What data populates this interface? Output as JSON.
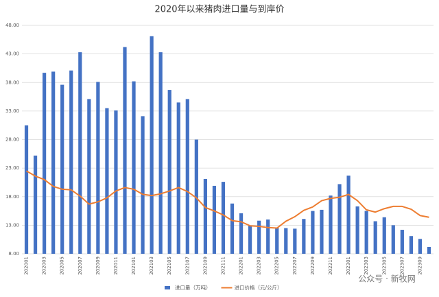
{
  "chart_data": {
    "type": "bar_line",
    "title": "2020年以来猪肉进口量与到岸价",
    "categories": [
      "202001",
      null,
      "202003",
      null,
      "202005",
      null,
      "202007",
      null,
      "202009",
      null,
      "202011",
      null,
      "202101",
      null,
      "202103",
      null,
      "202105",
      null,
      "202107",
      null,
      "202109",
      null,
      "202111",
      null,
      "202201",
      null,
      "202203",
      null,
      "202205",
      null,
      "202207",
      null,
      "202209",
      null,
      "202211",
      null,
      "202301",
      null,
      "202303",
      null,
      "202305",
      null,
      "202307",
      null,
      "202309",
      null
    ],
    "series": [
      {
        "name": "进口量（万吨）",
        "type": "bar",
        "color": "#4472c4",
        "values": [
          30.5,
          25.2,
          39.7,
          39.9,
          37.6,
          40.1,
          43.3,
          35.1,
          38.1,
          33.5,
          33.1,
          44.2,
          38.2,
          32.1,
          46.1,
          43.3,
          36.7,
          34.5,
          35.1,
          28.0,
          21.1,
          19.9,
          20.6,
          16.8,
          15.1,
          12.9,
          13.8,
          14.0,
          12.6,
          12.5,
          12.4,
          14.1,
          15.5,
          15.7,
          18.2,
          20.2,
          21.7,
          16.3,
          15.5,
          13.7,
          14.4,
          13.0,
          12.2,
          11.1,
          10.6,
          9.2
        ]
      },
      {
        "name": "进口价格（元/公斤）",
        "type": "line",
        "color": "#ed7d31",
        "values": [
          22.5,
          21.6,
          21.0,
          19.8,
          19.3,
          19.2,
          18.1,
          16.7,
          17.1,
          17.8,
          19.0,
          19.6,
          19.3,
          18.4,
          18.2,
          18.5,
          19.0,
          19.6,
          18.9,
          17.8,
          16.1,
          15.5,
          14.8,
          13.8,
          13.6,
          12.9,
          12.8,
          12.6,
          12.5,
          13.7,
          14.5,
          15.6,
          16.2,
          17.3,
          17.7,
          17.9,
          18.4,
          17.3,
          15.7,
          15.3,
          15.9,
          16.3,
          16.3,
          15.8,
          14.7,
          14.4
        ]
      }
    ],
    "ylim": [
      8,
      48
    ],
    "yticks": [
      {
        "value": 8,
        "label": "8.00"
      },
      {
        "value": 13,
        "label": "13.00"
      },
      {
        "value": 18,
        "label": "18.00"
      },
      {
        "value": 23,
        "label": "23.00"
      },
      {
        "value": 28,
        "label": "28.00"
      },
      {
        "value": 33,
        "label": "33.00"
      },
      {
        "value": 38,
        "label": "38.00"
      },
      {
        "value": 43,
        "label": "43.00"
      },
      {
        "value": 48,
        "label": "48.00"
      }
    ],
    "grid": true,
    "watermark": "公众号 · 新牧网"
  }
}
